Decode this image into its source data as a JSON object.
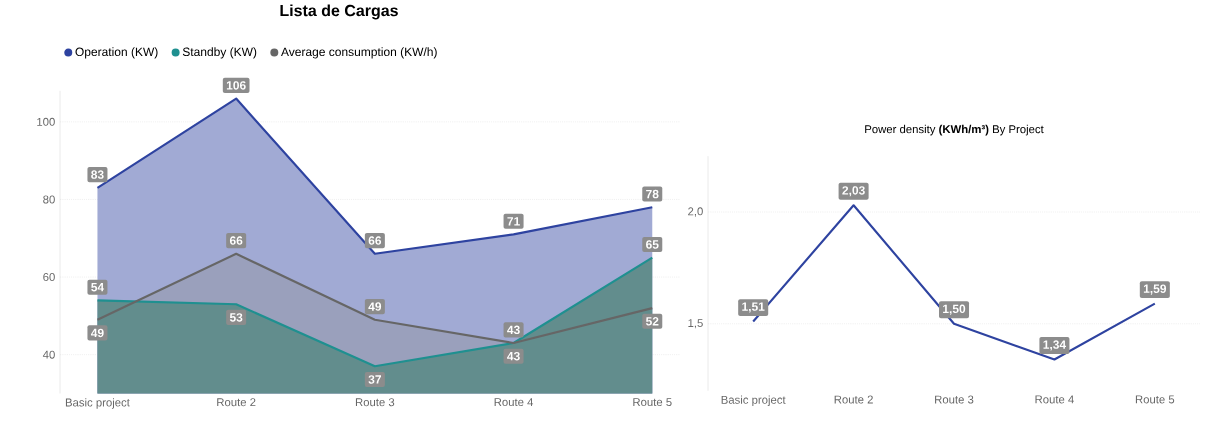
{
  "chart_data": [
    {
      "type": "area",
      "title": "Lista de Cargas",
      "categories": [
        "Basic project",
        "Route 2",
        "Route 3",
        "Route 4",
        "Route 5"
      ],
      "series": [
        {
          "name": "Operation (KW)",
          "color": "#2e43a0",
          "values": [
            83,
            106,
            66,
            71,
            78
          ],
          "value_labels": [
            "83",
            "106",
            "66",
            "71",
            "78"
          ]
        },
        {
          "name": "Standby (KW)",
          "color": "#1f9090",
          "values": [
            54,
            53,
            37,
            43,
            65
          ],
          "value_labels": [
            "54",
            "53",
            "37",
            "43",
            "65"
          ]
        },
        {
          "name": "Average consumption (KW/h)",
          "color": "#666666",
          "values": [
            49,
            66,
            49,
            43,
            52
          ],
          "value_labels": [
            "49",
            "66",
            "49",
            "43",
            "52"
          ]
        }
      ],
      "ylim": [
        30,
        108
      ],
      "yticks": [
        40,
        60,
        80,
        100
      ],
      "grid": "y",
      "legend": "top left"
    },
    {
      "type": "line",
      "title": "Power density **(KWh/m³)** By Project",
      "categories": [
        "Basic project",
        "Route 2",
        "Route 3",
        "Route 4",
        "Route 5"
      ],
      "series": [
        {
          "color": "#2e43a0",
          "values": [
            1.51,
            2.03,
            1.5,
            1.34,
            1.59
          ],
          "value_labels": [
            "1,51",
            "2,03",
            "1,50",
            "1,34",
            "1,59"
          ]
        }
      ],
      "ylim": [
        1.2,
        2.25
      ],
      "yticks": [
        {
          "value": 1.5,
          "label": "1,5"
        },
        {
          "value": 2,
          "label": "2,0"
        }
      ],
      "grid": "y"
    }
  ]
}
